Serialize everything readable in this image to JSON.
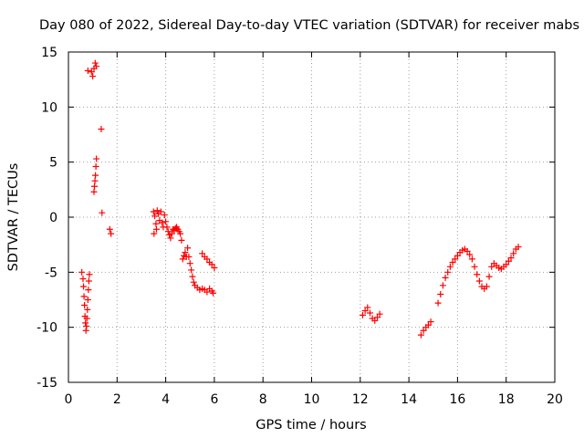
{
  "chart_data": {
    "type": "scatter",
    "title": "Day 080 of 2022, Sidereal Day-to-day VTEC variation (SDTVAR) for receiver mabs",
    "xlabel": "GPS time / hours",
    "ylabel": "SDTVAR / TECUs",
    "xlim": [
      0,
      20
    ],
    "ylim": [
      -15,
      15
    ],
    "xticks": [
      0,
      2,
      4,
      6,
      8,
      10,
      12,
      14,
      16,
      18,
      20
    ],
    "yticks": [
      -15,
      -10,
      -5,
      0,
      5,
      10,
      15
    ],
    "xtick_labels": [
      "0",
      "2",
      "4",
      "6",
      "8",
      "10",
      "12",
      "14",
      "16",
      "18",
      "20"
    ],
    "ytick_labels": [
      "-15",
      "-10",
      "-5",
      "0",
      "5",
      "10",
      "15"
    ],
    "grid": true,
    "marker": "+",
    "color": "#ff0000",
    "series": [
      {
        "name": "SDTVAR",
        "points": [
          [
            0.55,
            -5.0
          ],
          [
            0.6,
            -5.6
          ],
          [
            0.62,
            -6.3
          ],
          [
            0.64,
            -7.2
          ],
          [
            0.66,
            -8.0
          ],
          [
            0.68,
            -9.0
          ],
          [
            0.7,
            -9.6
          ],
          [
            0.72,
            -10.3
          ],
          [
            0.74,
            -9.9
          ],
          [
            0.76,
            -9.2
          ],
          [
            0.78,
            -8.4
          ],
          [
            0.8,
            -7.5
          ],
          [
            0.82,
            -6.6
          ],
          [
            0.84,
            -5.8
          ],
          [
            0.86,
            -5.2
          ],
          [
            0.8,
            13.3
          ],
          [
            0.95,
            13.2
          ],
          [
            1.0,
            12.8
          ],
          [
            1.05,
            13.5
          ],
          [
            1.1,
            14.0
          ],
          [
            1.15,
            13.7
          ],
          [
            1.05,
            2.3
          ],
          [
            1.07,
            2.8
          ],
          [
            1.09,
            3.3
          ],
          [
            1.11,
            3.8
          ],
          [
            1.13,
            4.6
          ],
          [
            1.15,
            5.3
          ],
          [
            1.35,
            8.0
          ],
          [
            1.38,
            0.4
          ],
          [
            1.7,
            -1.1
          ],
          [
            1.75,
            -1.5
          ],
          [
            3.5,
            0.5
          ],
          [
            3.52,
            -1.5
          ],
          [
            3.55,
            0.1
          ],
          [
            3.6,
            -0.6
          ],
          [
            3.62,
            -1.1
          ],
          [
            3.65,
            0.6
          ],
          [
            3.7,
            0.3
          ],
          [
            3.75,
            -0.3
          ],
          [
            3.8,
            0.5
          ],
          [
            3.85,
            -0.5
          ],
          [
            3.9,
            -0.9
          ],
          [
            3.95,
            0.2
          ],
          [
            4.0,
            -0.4
          ],
          [
            4.05,
            -0.9
          ],
          [
            4.1,
            -1.3
          ],
          [
            4.15,
            -1.6
          ],
          [
            4.2,
            -1.9
          ],
          [
            4.25,
            -1.5
          ],
          [
            4.3,
            -1.1
          ],
          [
            4.35,
            -1.2
          ],
          [
            4.4,
            -1.0
          ],
          [
            4.45,
            -0.9
          ],
          [
            4.5,
            -1.1
          ],
          [
            4.55,
            -1.3
          ],
          [
            4.6,
            -1.5
          ],
          [
            4.65,
            -2.1
          ],
          [
            4.7,
            -3.8
          ],
          [
            4.75,
            -3.5
          ],
          [
            4.8,
            -3.2
          ],
          [
            4.85,
            -3.6
          ],
          [
            4.9,
            -2.8
          ],
          [
            4.95,
            -3.6
          ],
          [
            5.0,
            -4.2
          ],
          [
            5.05,
            -4.8
          ],
          [
            5.1,
            -5.4
          ],
          [
            5.15,
            -5.9
          ],
          [
            5.2,
            -6.2
          ],
          [
            5.3,
            -6.4
          ],
          [
            5.4,
            -6.6
          ],
          [
            5.5,
            -6.5
          ],
          [
            5.6,
            -6.6
          ],
          [
            5.7,
            -6.8
          ],
          [
            5.8,
            -6.5
          ],
          [
            5.9,
            -6.7
          ],
          [
            5.95,
            -6.9
          ],
          [
            5.5,
            -3.3
          ],
          [
            5.6,
            -3.6
          ],
          [
            5.7,
            -3.8
          ],
          [
            5.8,
            -4.1
          ],
          [
            5.9,
            -4.3
          ],
          [
            6.0,
            -4.6
          ],
          [
            12.1,
            -8.9
          ],
          [
            12.2,
            -8.5
          ],
          [
            12.3,
            -8.2
          ],
          [
            12.4,
            -8.7
          ],
          [
            12.5,
            -9.2
          ],
          [
            12.6,
            -9.4
          ],
          [
            12.7,
            -9.1
          ],
          [
            12.8,
            -8.8
          ],
          [
            14.5,
            -10.7
          ],
          [
            14.6,
            -10.3
          ],
          [
            14.7,
            -10.0
          ],
          [
            14.8,
            -9.8
          ],
          [
            14.9,
            -9.5
          ],
          [
            15.2,
            -7.8
          ],
          [
            15.3,
            -7.0
          ],
          [
            15.4,
            -6.2
          ],
          [
            15.5,
            -5.5
          ],
          [
            15.6,
            -5.0
          ],
          [
            15.7,
            -4.5
          ],
          [
            15.8,
            -4.1
          ],
          [
            15.9,
            -3.8
          ],
          [
            16.0,
            -3.5
          ],
          [
            16.1,
            -3.2
          ],
          [
            16.2,
            -3.0
          ],
          [
            16.3,
            -2.9
          ],
          [
            16.4,
            -3.1
          ],
          [
            16.5,
            -3.4
          ],
          [
            16.6,
            -3.8
          ],
          [
            16.7,
            -4.5
          ],
          [
            16.8,
            -5.2
          ],
          [
            16.9,
            -5.8
          ],
          [
            17.0,
            -6.3
          ],
          [
            17.1,
            -6.5
          ],
          [
            17.2,
            -6.3
          ],
          [
            17.3,
            -5.4
          ],
          [
            17.4,
            -4.5
          ],
          [
            17.5,
            -4.2
          ],
          [
            17.6,
            -4.4
          ],
          [
            17.7,
            -4.6
          ],
          [
            17.8,
            -4.7
          ],
          [
            17.9,
            -4.5
          ],
          [
            18.0,
            -4.3
          ],
          [
            18.1,
            -4.0
          ],
          [
            18.2,
            -3.7
          ],
          [
            18.3,
            -3.3
          ],
          [
            18.4,
            -2.9
          ],
          [
            18.5,
            -2.7
          ]
        ]
      }
    ]
  }
}
